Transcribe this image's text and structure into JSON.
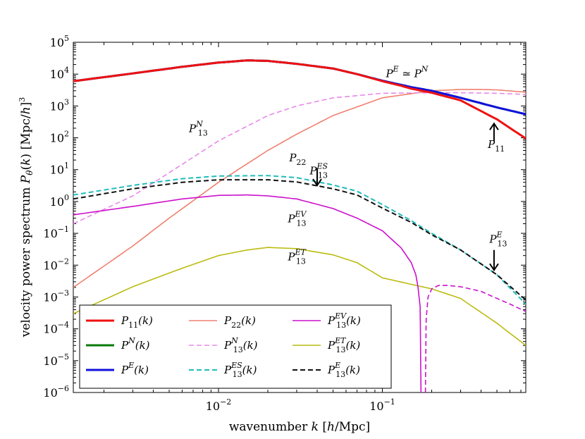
{
  "chart_data": {
    "type": "line",
    "title": "",
    "xlabel": "wavenumber k [h/Mpc]",
    "ylabel": "velocity power spectrum P_θ(k) [Mpc/h]^3",
    "xscale": "log",
    "yscale": "log",
    "xlim": [
      0.0013,
      0.75
    ],
    "ylim": [
      1e-06,
      100000.0
    ],
    "x_ticks": [
      {
        "value": 0.01,
        "label": "10",
        "exp": "−2"
      },
      {
        "value": 0.1,
        "label": "10",
        "exp": "−1"
      }
    ],
    "y_ticks": [
      {
        "value": 100000.0,
        "label": "10",
        "exp": "5"
      },
      {
        "value": 10000.0,
        "label": "10",
        "exp": "4"
      },
      {
        "value": 1000.0,
        "label": "10",
        "exp": "3"
      },
      {
        "value": 100.0,
        "label": "10",
        "exp": "2"
      },
      {
        "value": 10.0,
        "label": "10",
        "exp": "1"
      },
      {
        "value": 1.0,
        "label": "10",
        "exp": "0"
      },
      {
        "value": 0.1,
        "label": "10",
        "exp": "−1"
      },
      {
        "value": 0.01,
        "label": "10",
        "exp": "−2"
      },
      {
        "value": 0.001,
        "label": "10",
        "exp": "−3"
      },
      {
        "value": 0.0001,
        "label": "10",
        "exp": "−4"
      },
      {
        "value": 1e-05,
        "label": "10",
        "exp": "−5"
      },
      {
        "value": 1e-06,
        "label": "10",
        "exp": "−6"
      }
    ],
    "series": [
      {
        "id": "P11",
        "name": "P11(k)",
        "color": "#ee1111",
        "width": 3,
        "dash": "solid",
        "x": [
          0.0013,
          0.003,
          0.006,
          0.01,
          0.015,
          0.02,
          0.03,
          0.05,
          0.07,
          0.1,
          0.13,
          0.15,
          0.2,
          0.3,
          0.5,
          0.75
        ],
        "y": [
          6000,
          10500,
          17000,
          23000,
          27000,
          26000,
          21000,
          15000,
          10000,
          6000,
          4300,
          3500,
          2600,
          1500,
          380,
          95
        ]
      },
      {
        "id": "PN",
        "name": "P^N(k)",
        "color": "#0a7a0a",
        "width": 3,
        "dash": "solid",
        "x": [
          0.0013,
          0.003,
          0.006,
          0.01,
          0.015,
          0.02,
          0.03,
          0.05,
          0.07,
          0.1,
          0.13,
          0.15,
          0.2,
          0.3,
          0.5,
          0.75
        ],
        "y": [
          6000,
          10500,
          17000,
          23000,
          27000,
          26000,
          21000,
          15000,
          10000,
          6200,
          4600,
          3900,
          3000,
          1800,
          900,
          550
        ]
      },
      {
        "id": "PE",
        "name": "P^E(k)",
        "color": "#1111dd",
        "width": 3,
        "dash": "solid",
        "x": [
          0.0013,
          0.003,
          0.006,
          0.01,
          0.015,
          0.02,
          0.03,
          0.05,
          0.07,
          0.1,
          0.13,
          0.15,
          0.2,
          0.3,
          0.5,
          0.75
        ],
        "y": [
          6000,
          10500,
          17000,
          23000,
          27000,
          26000,
          21000,
          15000,
          10000,
          6200,
          4600,
          3900,
          3000,
          1800,
          900,
          550
        ]
      },
      {
        "id": "P22",
        "name": "P22(k)",
        "color": "#f08070",
        "width": 1.6,
        "dash": "solid",
        "x": [
          0.0013,
          0.003,
          0.005,
          0.01,
          0.02,
          0.03,
          0.05,
          0.1,
          0.2,
          0.3,
          0.4,
          0.5,
          0.75
        ],
        "y": [
          0.002,
          0.04,
          0.3,
          4,
          40,
          130,
          500,
          1800,
          3000,
          3300,
          3300,
          3200,
          2700
        ]
      },
      {
        "id": "P13N",
        "name": "P13^N(k)",
        "color": "#e888e8",
        "width": 1.6,
        "dash": "dashed",
        "x": [
          0.0013,
          0.003,
          0.005,
          0.01,
          0.02,
          0.03,
          0.05,
          0.1,
          0.2,
          0.3,
          0.5,
          0.75
        ],
        "y": [
          0.2,
          1.5,
          8,
          80,
          500,
          1000,
          1800,
          2500,
          2600,
          2600,
          2500,
          2300
        ]
      },
      {
        "id": "P13ES",
        "name": "P13^ES(k)",
        "color": "#22bbbb",
        "width": 2,
        "dash": "dashed",
        "x": [
          0.0013,
          0.003,
          0.006,
          0.01,
          0.02,
          0.03,
          0.05,
          0.07,
          0.1,
          0.15,
          0.2,
          0.3,
          0.5,
          0.75
        ],
        "y": [
          1.6,
          3.2,
          5.2,
          6.3,
          6.5,
          5.6,
          3.3,
          2.1,
          0.8,
          0.25,
          0.1,
          0.03,
          0.005,
          0.0006
        ]
      },
      {
        "id": "P13EV",
        "name": "P13^EV(k)",
        "color": "#cc11cc",
        "width": 1.6,
        "dash": "solid",
        "x": [
          0.0013,
          0.003,
          0.006,
          0.01,
          0.015,
          0.02,
          0.03,
          0.05,
          0.07,
          0.1,
          0.13,
          0.15,
          0.16,
          0.165,
          0.17,
          0.172
        ],
        "y": [
          0.38,
          0.7,
          1.2,
          1.55,
          1.6,
          1.5,
          1.2,
          0.6,
          0.3,
          0.12,
          0.035,
          0.012,
          0.005,
          0.002,
          0.0005,
          1e-06
        ]
      },
      {
        "id": "P13EVneg",
        "name": "−P13^EV(k)",
        "color": "#cc11cc",
        "width": 1.6,
        "dash": "dashed",
        "x": [
          0.183,
          0.185,
          0.19,
          0.2,
          0.22,
          0.25,
          0.3,
          0.4,
          0.5,
          0.6,
          0.75
        ],
        "y": [
          1e-06,
          0.0002,
          0.001,
          0.0018,
          0.0023,
          0.0023,
          0.0021,
          0.0015,
          0.0009,
          0.0006,
          0.00035
        ]
      },
      {
        "id": "P13ET",
        "name": "P13^ET(k)",
        "color": "#bbbb11",
        "width": 1.6,
        "dash": "solid",
        "x": [
          0.0013,
          0.003,
          0.006,
          0.01,
          0.015,
          0.02,
          0.03,
          0.05,
          0.07,
          0.1,
          0.15,
          0.2,
          0.3,
          0.5,
          0.75
        ],
        "y": [
          0.0003,
          0.0021,
          0.008,
          0.02,
          0.03,
          0.036,
          0.033,
          0.021,
          0.012,
          0.004,
          0.0025,
          0.0018,
          0.0009,
          0.00015,
          3e-05
        ]
      },
      {
        "id": "P13E",
        "name": "P13^E(k)",
        "color": "#111111",
        "width": 2,
        "dash": "dashed",
        "x": [
          0.0013,
          0.003,
          0.006,
          0.01,
          0.02,
          0.03,
          0.05,
          0.07,
          0.1,
          0.15,
          0.2,
          0.3,
          0.5,
          0.75
        ],
        "y": [
          1.2,
          2.5,
          4,
          4.8,
          4.8,
          4.1,
          2.5,
          1.6,
          0.62,
          0.22,
          0.09,
          0.03,
          0.005,
          0.0008
        ]
      }
    ],
    "annotations": [
      {
        "id": "PE_PN",
        "base": "P",
        "sup": "E",
        "extra": " ≃ P",
        "sup2": "N",
        "x": 0.105,
        "y": 8000
      },
      {
        "id": "P11",
        "base": "P",
        "sub": "11",
        "x": 0.44,
        "y": 48
      },
      {
        "id": "P13N",
        "base": "P",
        "sub": "13",
        "sup": "N",
        "x": 0.0066,
        "y": 150
      },
      {
        "id": "P22",
        "base": "P",
        "sub": "22",
        "x": 0.027,
        "y": 18
      },
      {
        "id": "P13ES",
        "base": "P",
        "sub": "13",
        "sup": "ES",
        "x": 0.036,
        "y": 7
      },
      {
        "id": "P13EV",
        "base": "P",
        "sub": "13",
        "sup": "EV",
        "x": 0.0265,
        "y": 0.22
      },
      {
        "id": "P13ET",
        "base": "P",
        "sub": "13",
        "sup": "ET",
        "x": 0.0265,
        "y": 0.014
      },
      {
        "id": "P13E",
        "base": "P",
        "sub": "13",
        "sup": "E",
        "x": 0.45,
        "y": 0.05
      }
    ],
    "arrows": [
      {
        "id": "arrow-p11",
        "x": 0.48,
        "from": 80,
        "to": 280
      },
      {
        "id": "arrow-p13es",
        "x": 0.04,
        "from": 11,
        "to": 3.2
      },
      {
        "id": "arrow-p13e",
        "x": 0.48,
        "from": 0.03,
        "to": 0.007
      }
    ],
    "legend": {
      "placement": "lower-left",
      "entries": [
        {
          "series": "P11",
          "base": "P",
          "sub": "11",
          "tail": "(k)"
        },
        {
          "series": "PN",
          "base": "P",
          "sup": "N",
          "tail": "(k)"
        },
        {
          "series": "PE",
          "base": "P",
          "sup": "E",
          "tail": "(k)"
        },
        {
          "series": "P22",
          "base": "P",
          "sub": "22",
          "tail": "(k)"
        },
        {
          "series": "P13N",
          "base": "P",
          "sub": "13",
          "sup": "N",
          "tail": "(k)"
        },
        {
          "series": "P13ES",
          "base": "P",
          "sub": "13",
          "sup": "ES",
          "tail": "(k)"
        },
        {
          "series": "P13EV",
          "base": "P",
          "sub": "13",
          "sup": "EV",
          "tail": "(k)"
        },
        {
          "series": "P13ET",
          "base": "P",
          "sub": "13",
          "sup": "ET",
          "tail": "(k)"
        },
        {
          "series": "P13E",
          "base": "P",
          "sub": "13",
          "sup": "E",
          "tail": "(k)"
        }
      ]
    }
  }
}
